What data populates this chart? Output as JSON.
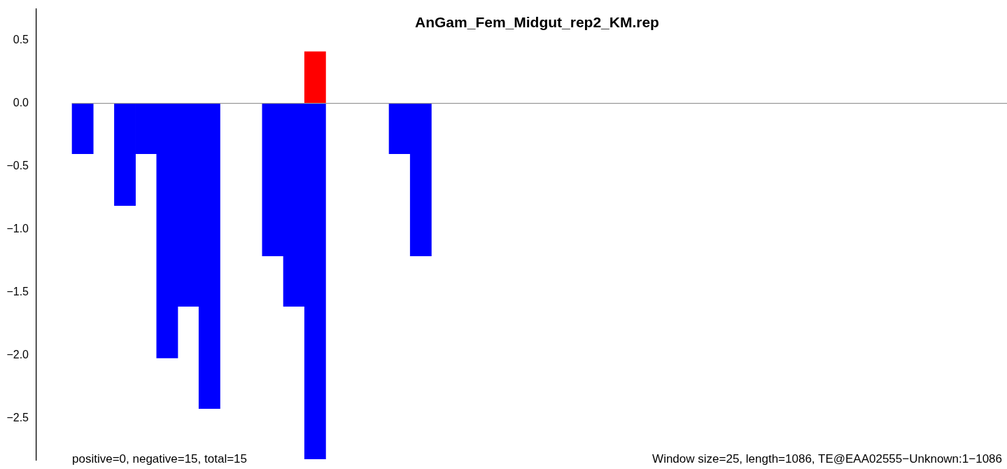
{
  "chart_data": {
    "type": "bar",
    "title": "AnGam_Fem_Midgut_rep2_KM.rep",
    "categories": [
      null,
      null,
      null,
      null,
      null,
      null,
      null,
      null,
      null,
      null,
      null,
      null,
      null,
      null,
      null,
      null,
      null,
      null,
      null,
      null,
      null,
      null,
      null,
      null,
      null,
      null,
      null,
      null,
      null,
      null,
      null,
      null,
      null,
      null,
      null,
      null,
      null,
      null,
      null,
      null,
      null,
      null,
      null,
      null
    ],
    "stacked": true,
    "series": [
      {
        "color": "#ff0000",
        "values": [
          null,
          null,
          null,
          null,
          null,
          null,
          null,
          null,
          null,
          null,
          null,
          0.41,
          null,
          null,
          null,
          null,
          null,
          null,
          null,
          null,
          null,
          null,
          null,
          null,
          null,
          null,
          null,
          null,
          null,
          null,
          null,
          null,
          null,
          null,
          null,
          null,
          null,
          null,
          null,
          null,
          null,
          null,
          null,
          null
        ]
      },
      {
        "color": "#0000ff",
        "values": [
          -0.4,
          null,
          -0.81,
          -0.4,
          -2.02,
          -1.61,
          -2.42,
          null,
          null,
          -1.21,
          -1.61,
          -2.82,
          null,
          null,
          null,
          -0.4,
          -1.21,
          null,
          null,
          null,
          null,
          null,
          null,
          null,
          null,
          null,
          null,
          null,
          null,
          null,
          null,
          null,
          null,
          null,
          null,
          null,
          null,
          null,
          null,
          null,
          null,
          null,
          null,
          null
        ]
      }
    ],
    "ylim": [
      -2.83,
      0.75
    ],
    "yticks": [
      {
        "value": -2.5,
        "label": "−2.5"
      },
      {
        "value": -2,
        "label": "−2.0"
      },
      {
        "value": -1.5,
        "label": "−1.5"
      },
      {
        "value": -1,
        "label": "−1.0"
      },
      {
        "value": -0.5,
        "label": "−0.5"
      },
      {
        "value": 0,
        "label": "0.0"
      },
      0.5
    ],
    "tick_labels": "y",
    "grid": false,
    "legend": false,
    "ref_lines": [
      {
        "axis": "y",
        "value": 0,
        "color": "#999999"
      }
    ],
    "annotations": [
      "positive=0, negative=15, total=15",
      "Window size=25, length=1086, TE@EAA02555−Unknown:1−1086"
    ]
  }
}
